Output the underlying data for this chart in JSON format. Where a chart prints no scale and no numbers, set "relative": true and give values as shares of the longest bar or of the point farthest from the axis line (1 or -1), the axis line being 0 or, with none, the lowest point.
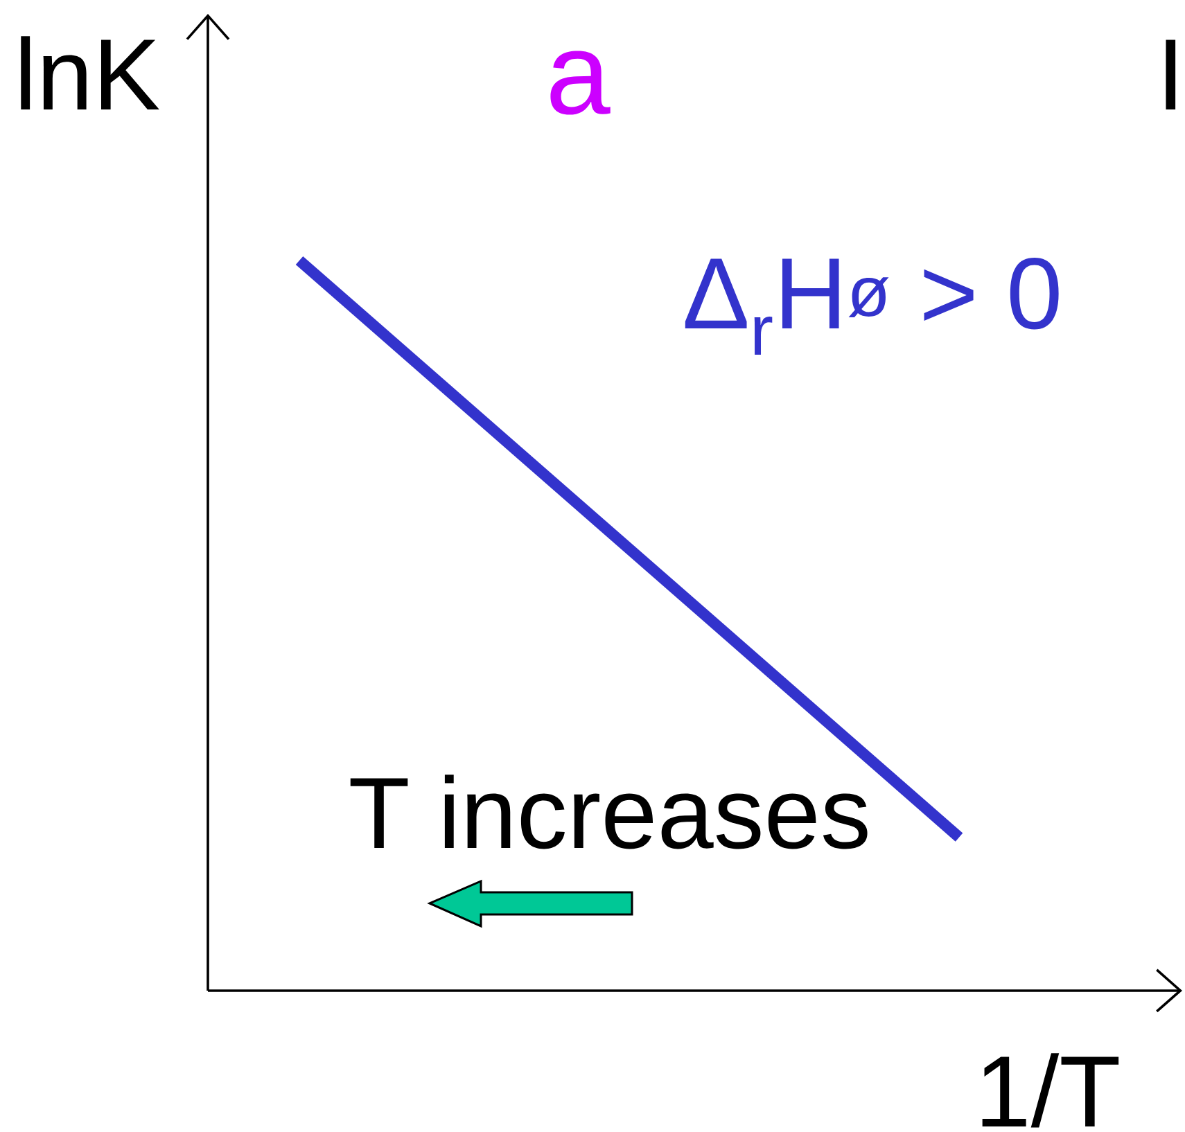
{
  "chart_data": {
    "type": "line",
    "title": "a",
    "xlabel": "1/T",
    "ylabel": "lnK",
    "categories": [
      null,
      null
    ],
    "values": [
      1,
      0.21
    ],
    "color": "#3333cc",
    "relative": true,
    "annotations": [
      "Δ$_{r}$H$^{ø}$ > 0",
      "T increases",
      "I"
    ]
  }
}
